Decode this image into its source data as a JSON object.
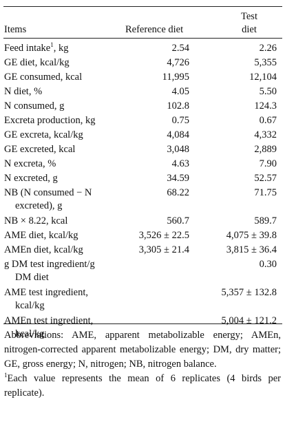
{
  "header": {
    "items": "Items",
    "reference": "Reference diet",
    "test_line1": "Test",
    "test_line2": "diet"
  },
  "rows": [
    {
      "label": "Feed intake",
      "sup": "1",
      "label_suffix": ", kg",
      "ref": "2.54",
      "test": "2.26"
    },
    {
      "label": "GE diet, kcal/kg",
      "ref": "4,726",
      "test": "5,355"
    },
    {
      "label": "GE consumed, kcal",
      "ref": "11,995",
      "test": "12,104"
    },
    {
      "label": "N diet, %",
      "ref": "4.05",
      "test": "5.50"
    },
    {
      "label": "N consumed, g",
      "ref": "102.8",
      "test": "124.3"
    },
    {
      "label": "Excreta production, kg",
      "ref": "0.75",
      "test": "0.67"
    },
    {
      "label": "GE excreta, kcal/kg",
      "ref": "4,084",
      "test": "4,332"
    },
    {
      "label": "GE excreted, kcal",
      "ref": "3,048",
      "test": "2,889"
    },
    {
      "label": "N excreta, %",
      "ref": "4.63",
      "test": "7.90"
    },
    {
      "label": "N excreted, g",
      "ref": "34.59",
      "test": "52.57"
    },
    {
      "label": "NB (N consumed − N",
      "label2": "excreted), g",
      "ref": "68.22",
      "test": "71.75"
    },
    {
      "label": "NB × 8.22, kcal",
      "ref": "560.7",
      "test": "589.7"
    },
    {
      "label": "AME diet, kcal/kg",
      "ref": "3,526 ± 22.5",
      "test": "4,075 ± 39.8"
    },
    {
      "label": "AMEn diet, kcal/kg",
      "ref": "3,305 ± 21.4",
      "test": "3,815 ± 36.4"
    },
    {
      "label": "g DM test ingredient/g",
      "label2": "DM diet",
      "ref": "",
      "test": "0.30"
    },
    {
      "label": "AME test ingredient,",
      "label2": "kcal/kg",
      "ref": "",
      "test": "5,357 ± 132.8"
    },
    {
      "label": "AMEn test ingredient,",
      "label2": "kcal/kg",
      "ref": "",
      "test": "5,004 ± 121.2"
    }
  ],
  "notes": {
    "abbreviations": "Abbreviations: AME, apparent metabolizable energy; AMEn, nitrogen-corrected apparent metabolizable energy; DM, dry matter; GE, gross energy; N, nitrogen; NB, nitrogen balance.",
    "footnote_sup": "1",
    "footnote": "Each value represents the mean of 6 replicates (4 birds per replicate)."
  }
}
